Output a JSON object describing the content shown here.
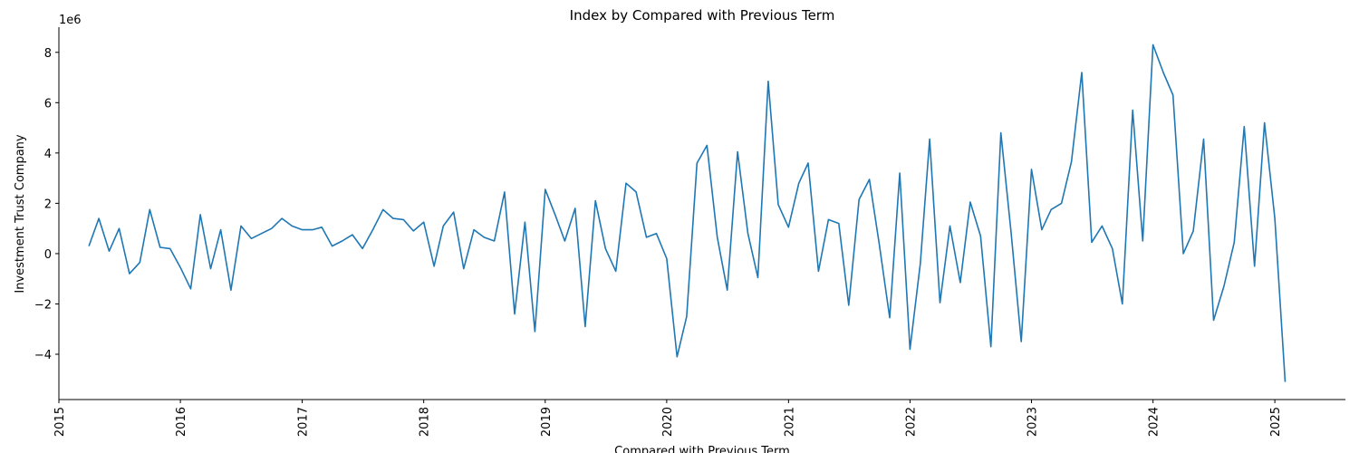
{
  "chart_data": {
    "type": "line",
    "title": "Index by Compared with Previous Term",
    "xlabel": "Compared with Previous Term",
    "ylabel": "Investment Trust Company",
    "y_offset_label": "1e6",
    "x_tick_labels": [
      "2015",
      "2016",
      "2017",
      "2018",
      "2019",
      "2020",
      "2021",
      "2022",
      "2023",
      "2024",
      "2025"
    ],
    "y_tick_values": [
      -4,
      -2,
      0,
      2,
      4,
      6,
      8
    ],
    "y_tick_labels": [
      "−4",
      "−2",
      "0",
      "2",
      "4",
      "6",
      "8"
    ],
    "xlim": [
      "2015-01-01",
      "2025-08-01"
    ],
    "ylim": [
      -5.8,
      9.0
    ],
    "y_multiplier": 1000000,
    "grid": false,
    "series": [
      {
        "color": "#1f77b4",
        "x": [
          "2015-04",
          "2015-05",
          "2015-06",
          "2015-07",
          "2015-08",
          "2015-09",
          "2015-10",
          "2015-11",
          "2015-12",
          "2016-01",
          "2016-02",
          "2016-03",
          "2016-04",
          "2016-05",
          "2016-06",
          "2016-07",
          "2016-08",
          "2016-09",
          "2016-10",
          "2016-11",
          "2016-12",
          "2017-01",
          "2017-02",
          "2017-03",
          "2017-04",
          "2017-05",
          "2017-06",
          "2017-07",
          "2017-08",
          "2017-09",
          "2017-10",
          "2017-11",
          "2017-12",
          "2018-01",
          "2018-02",
          "2018-03",
          "2018-04",
          "2018-05",
          "2018-06",
          "2018-07",
          "2018-08",
          "2018-09",
          "2018-10",
          "2018-11",
          "2018-12",
          "2019-01",
          "2019-02",
          "2019-03",
          "2019-04",
          "2019-05",
          "2019-06",
          "2019-07",
          "2019-08",
          "2019-09",
          "2019-10",
          "2019-11",
          "2019-12",
          "2020-01",
          "2020-02",
          "2020-03",
          "2020-04",
          "2020-05",
          "2020-06",
          "2020-07",
          "2020-08",
          "2020-09",
          "2020-10",
          "2020-11",
          "2020-12",
          "2021-01",
          "2021-02",
          "2021-03",
          "2021-04",
          "2021-05",
          "2021-06",
          "2021-07",
          "2021-08",
          "2021-09",
          "2021-10",
          "2021-11",
          "2021-12",
          "2022-01",
          "2022-02",
          "2022-03",
          "2022-04",
          "2022-05",
          "2022-06",
          "2022-07",
          "2022-08",
          "2022-09",
          "2022-10",
          "2022-11",
          "2022-12",
          "2023-01",
          "2023-02",
          "2023-03",
          "2023-04",
          "2023-05",
          "2023-06",
          "2023-07",
          "2023-08",
          "2023-09",
          "2023-10",
          "2023-11",
          "2023-12",
          "2024-01",
          "2024-02",
          "2024-03",
          "2024-04",
          "2024-05",
          "2024-06",
          "2024-07",
          "2024-08",
          "2024-09",
          "2024-10",
          "2024-11",
          "2024-12",
          "2025-01",
          "2025-02"
        ],
        "y": [
          0.3,
          1.4,
          0.1,
          1.0,
          -0.8,
          -0.35,
          1.75,
          0.25,
          0.2,
          -0.55,
          -1.4,
          1.55,
          -0.6,
          0.95,
          -1.45,
          1.1,
          0.6,
          0.8,
          1.0,
          1.4,
          1.1,
          0.95,
          0.95,
          1.05,
          0.3,
          0.5,
          0.75,
          0.2,
          0.95,
          1.75,
          1.4,
          1.35,
          0.9,
          1.25,
          -0.5,
          1.1,
          1.65,
          -0.6,
          0.95,
          0.65,
          0.5,
          2.45,
          -2.4,
          1.25,
          -3.1,
          2.55,
          1.5,
          0.5,
          1.8,
          -2.9,
          2.1,
          0.2,
          -0.7,
          2.8,
          2.45,
          0.65,
          0.8,
          -0.2,
          -4.1,
          -2.5,
          3.6,
          4.3,
          0.65,
          -1.45,
          4.05,
          0.8,
          -0.95,
          6.85,
          1.95,
          1.05,
          2.8,
          3.6,
          -0.7,
          1.35,
          1.2,
          -2.05,
          2.15,
          2.95,
          0.35,
          -2.55,
          3.2,
          -3.8,
          -0.4,
          4.55,
          -1.95,
          1.1,
          -1.15,
          2.05,
          0.7,
          -3.7,
          4.8,
          0.8,
          -3.5,
          3.35,
          0.95,
          1.75,
          2.0,
          3.65,
          7.2,
          0.45,
          1.1,
          0.2,
          -2.0,
          5.7,
          0.5,
          8.3,
          7.2,
          6.3,
          0.0,
          0.9,
          4.55,
          -2.65,
          -1.3,
          0.45,
          5.05,
          -0.5,
          5.2,
          1.4,
          -5.1
        ]
      }
    ]
  }
}
